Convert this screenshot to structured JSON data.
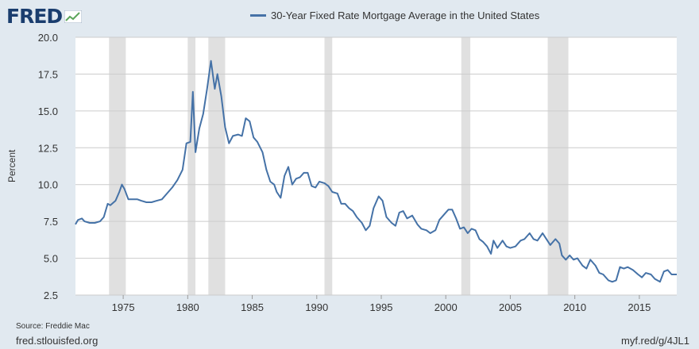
{
  "header": {
    "logo_text": "FRED",
    "logo_icon": "line-graph-icon"
  },
  "legend": {
    "label": "30-Year Fixed Rate Mortgage Average in the United States",
    "color": "#4572a7"
  },
  "footer": {
    "source": "Source: Freddie Mac",
    "site": "fred.stlouisfed.org",
    "shortlink": "myf.red/g/4JL1"
  },
  "colors": {
    "background": "#e1e9f0",
    "plot_background": "#ffffff",
    "recession_shade": "#e0e0e0",
    "line": "#4572a7"
  },
  "chart_data": {
    "type": "line",
    "title": "",
    "xlabel": "",
    "ylabel": "Percent",
    "xlim": [
      1971.3,
      2017.9
    ],
    "ylim": [
      2.5,
      20.0
    ],
    "grid": true,
    "legend_position": "top",
    "x_ticks": [
      "1975",
      "1980",
      "1985",
      "1990",
      "1995",
      "2000",
      "2005",
      "2010",
      "2015"
    ],
    "y_ticks": [
      "2.5",
      "5.0",
      "7.5",
      "10.0",
      "12.5",
      "15.0",
      "17.5",
      "20.0"
    ],
    "recessions": [
      [
        1973.9,
        1975.2
      ],
      [
        1980.0,
        1980.6
      ],
      [
        1981.6,
        1982.9
      ],
      [
        1990.6,
        1991.2
      ],
      [
        2001.2,
        2001.9
      ],
      [
        2007.9,
        2009.5
      ]
    ],
    "series": [
      {
        "name": "30-Year Fixed Rate Mortgage Average in the United States",
        "points": [
          [
            1971.3,
            7.3
          ],
          [
            1971.5,
            7.6
          ],
          [
            1971.8,
            7.7
          ],
          [
            1972.0,
            7.5
          ],
          [
            1972.4,
            7.4
          ],
          [
            1972.8,
            7.4
          ],
          [
            1973.2,
            7.5
          ],
          [
            1973.5,
            7.8
          ],
          [
            1973.8,
            8.7
          ],
          [
            1974.0,
            8.6
          ],
          [
            1974.4,
            8.9
          ],
          [
            1974.7,
            9.5
          ],
          [
            1974.9,
            10.0
          ],
          [
            1975.1,
            9.7
          ],
          [
            1975.4,
            9.0
          ],
          [
            1975.8,
            9.0
          ],
          [
            1976.1,
            9.0
          ],
          [
            1976.4,
            8.9
          ],
          [
            1976.8,
            8.8
          ],
          [
            1977.2,
            8.8
          ],
          [
            1977.6,
            8.9
          ],
          [
            1978.0,
            9.0
          ],
          [
            1978.4,
            9.4
          ],
          [
            1978.8,
            9.8
          ],
          [
            1979.2,
            10.3
          ],
          [
            1979.6,
            11.0
          ],
          [
            1979.9,
            12.8
          ],
          [
            1980.2,
            12.9
          ],
          [
            1980.4,
            16.3
          ],
          [
            1980.6,
            12.2
          ],
          [
            1980.9,
            13.8
          ],
          [
            1981.2,
            14.8
          ],
          [
            1981.5,
            16.5
          ],
          [
            1981.8,
            18.4
          ],
          [
            1982.1,
            16.5
          ],
          [
            1982.3,
            17.5
          ],
          [
            1982.6,
            16.0
          ],
          [
            1982.9,
            13.9
          ],
          [
            1983.2,
            12.8
          ],
          [
            1983.5,
            13.3
          ],
          [
            1983.9,
            13.4
          ],
          [
            1984.2,
            13.3
          ],
          [
            1984.5,
            14.5
          ],
          [
            1984.8,
            14.3
          ],
          [
            1985.1,
            13.2
          ],
          [
            1985.4,
            12.9
          ],
          [
            1985.8,
            12.2
          ],
          [
            1986.1,
            11.0
          ],
          [
            1986.4,
            10.2
          ],
          [
            1986.7,
            10.0
          ],
          [
            1986.9,
            9.5
          ],
          [
            1987.2,
            9.1
          ],
          [
            1987.5,
            10.6
          ],
          [
            1987.8,
            11.2
          ],
          [
            1988.1,
            10.0
          ],
          [
            1988.4,
            10.4
          ],
          [
            1988.7,
            10.5
          ],
          [
            1989.0,
            10.8
          ],
          [
            1989.3,
            10.8
          ],
          [
            1989.6,
            9.9
          ],
          [
            1989.9,
            9.8
          ],
          [
            1990.2,
            10.2
          ],
          [
            1990.6,
            10.1
          ],
          [
            1990.9,
            9.9
          ],
          [
            1991.2,
            9.5
          ],
          [
            1991.6,
            9.4
          ],
          [
            1991.9,
            8.7
          ],
          [
            1992.2,
            8.7
          ],
          [
            1992.5,
            8.4
          ],
          [
            1992.8,
            8.2
          ],
          [
            1993.1,
            7.8
          ],
          [
            1993.5,
            7.4
          ],
          [
            1993.8,
            6.9
          ],
          [
            1994.1,
            7.2
          ],
          [
            1994.4,
            8.4
          ],
          [
            1994.8,
            9.2
          ],
          [
            1995.1,
            8.9
          ],
          [
            1995.4,
            7.8
          ],
          [
            1995.8,
            7.4
          ],
          [
            1996.1,
            7.2
          ],
          [
            1996.4,
            8.1
          ],
          [
            1996.7,
            8.2
          ],
          [
            1997.0,
            7.7
          ],
          [
            1997.4,
            7.9
          ],
          [
            1997.8,
            7.3
          ],
          [
            1998.1,
            7.0
          ],
          [
            1998.5,
            6.9
          ],
          [
            1998.8,
            6.7
          ],
          [
            1999.2,
            6.9
          ],
          [
            1999.5,
            7.6
          ],
          [
            1999.8,
            7.9
          ],
          [
            2000.2,
            8.3
          ],
          [
            2000.5,
            8.3
          ],
          [
            2000.8,
            7.7
          ],
          [
            2001.1,
            7.0
          ],
          [
            2001.4,
            7.1
          ],
          [
            2001.7,
            6.7
          ],
          [
            2002.0,
            7.0
          ],
          [
            2002.3,
            6.9
          ],
          [
            2002.6,
            6.3
          ],
          [
            2002.9,
            6.1
          ],
          [
            2003.2,
            5.8
          ],
          [
            2003.5,
            5.3
          ],
          [
            2003.7,
            6.2
          ],
          [
            2004.0,
            5.7
          ],
          [
            2004.4,
            6.2
          ],
          [
            2004.7,
            5.8
          ],
          [
            2005.0,
            5.7
          ],
          [
            2005.4,
            5.8
          ],
          [
            2005.8,
            6.2
          ],
          [
            2006.1,
            6.3
          ],
          [
            2006.5,
            6.7
          ],
          [
            2006.8,
            6.3
          ],
          [
            2007.1,
            6.2
          ],
          [
            2007.5,
            6.7
          ],
          [
            2007.8,
            6.3
          ],
          [
            2008.1,
            5.9
          ],
          [
            2008.5,
            6.3
          ],
          [
            2008.8,
            6.0
          ],
          [
            2009.0,
            5.2
          ],
          [
            2009.3,
            4.9
          ],
          [
            2009.6,
            5.2
          ],
          [
            2009.9,
            4.9
          ],
          [
            2010.2,
            5.0
          ],
          [
            2010.6,
            4.5
          ],
          [
            2010.9,
            4.3
          ],
          [
            2011.2,
            4.9
          ],
          [
            2011.6,
            4.5
          ],
          [
            2011.9,
            4.0
          ],
          [
            2012.2,
            3.9
          ],
          [
            2012.6,
            3.5
          ],
          [
            2012.9,
            3.4
          ],
          [
            2013.2,
            3.5
          ],
          [
            2013.5,
            4.4
          ],
          [
            2013.8,
            4.3
          ],
          [
            2014.1,
            4.4
          ],
          [
            2014.5,
            4.2
          ],
          [
            2014.9,
            3.9
          ],
          [
            2015.2,
            3.7
          ],
          [
            2015.5,
            4.0
          ],
          [
            2015.9,
            3.9
          ],
          [
            2016.2,
            3.6
          ],
          [
            2016.6,
            3.4
          ],
          [
            2016.9,
            4.1
          ],
          [
            2017.2,
            4.2
          ],
          [
            2017.5,
            3.9
          ],
          [
            2017.9,
            3.9
          ]
        ]
      }
    ]
  }
}
